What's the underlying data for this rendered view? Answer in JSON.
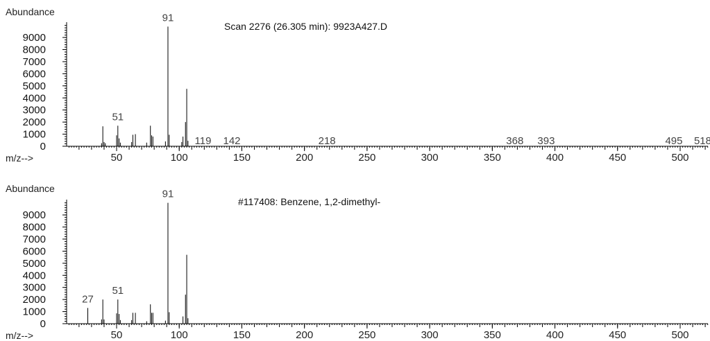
{
  "chart_data": [
    {
      "type": "bar",
      "title": "Scan 2276 (26.305 min): 9923A427.D",
      "ylabel": "Abundance",
      "xlabel": "m/z-->",
      "xlim": [
        10,
        525
      ],
      "ylim": [
        0,
        10000
      ],
      "xticks": [
        50,
        100,
        150,
        200,
        250,
        300,
        350,
        400,
        450,
        500
      ],
      "yticks": [
        0,
        1000,
        2000,
        3000,
        4000,
        5000,
        6000,
        7000,
        8000,
        9000
      ],
      "peak_labels": [
        {
          "x": 51,
          "text": "51"
        },
        {
          "x": 91,
          "text": "91"
        },
        {
          "x": 119,
          "text": "119"
        },
        {
          "x": 142,
          "text": "142"
        },
        {
          "x": 218,
          "text": "218"
        },
        {
          "x": 368,
          "text": "368"
        },
        {
          "x": 393,
          "text": "393"
        },
        {
          "x": 495,
          "text": "495"
        },
        {
          "x": 518,
          "text": "518"
        }
      ],
      "peaks": [
        {
          "x": 38,
          "y": 250
        },
        {
          "x": 39,
          "y": 1650
        },
        {
          "x": 40,
          "y": 350
        },
        {
          "x": 41,
          "y": 250
        },
        {
          "x": 50,
          "y": 900
        },
        {
          "x": 51,
          "y": 1700
        },
        {
          "x": 52,
          "y": 650
        },
        {
          "x": 53,
          "y": 300
        },
        {
          "x": 62,
          "y": 350
        },
        {
          "x": 63,
          "y": 950
        },
        {
          "x": 65,
          "y": 1000
        },
        {
          "x": 74,
          "y": 300
        },
        {
          "x": 77,
          "y": 1700
        },
        {
          "x": 78,
          "y": 900
        },
        {
          "x": 79,
          "y": 800
        },
        {
          "x": 89,
          "y": 400
        },
        {
          "x": 91,
          "y": 9900
        },
        {
          "x": 92,
          "y": 950
        },
        {
          "x": 102,
          "y": 350
        },
        {
          "x": 103,
          "y": 800
        },
        {
          "x": 105,
          "y": 2000
        },
        {
          "x": 106,
          "y": 4750
        },
        {
          "x": 107,
          "y": 450
        }
      ]
    },
    {
      "type": "bar",
      "title": "#117408: Benzene, 1,2-dimethyl-",
      "ylabel": "Abundance",
      "xlabel": "m/z-->",
      "xlim": [
        10,
        525
      ],
      "ylim": [
        0,
        10000
      ],
      "xticks": [
        50,
        100,
        150,
        200,
        250,
        300,
        350,
        400,
        450,
        500
      ],
      "yticks": [
        0,
        1000,
        2000,
        3000,
        4000,
        5000,
        6000,
        7000,
        8000,
        9000
      ],
      "peak_labels": [
        {
          "x": 27,
          "text": "27"
        },
        {
          "x": 51,
          "text": "51"
        },
        {
          "x": 91,
          "text": "91"
        }
      ],
      "peaks": [
        {
          "x": 27,
          "y": 1300
        },
        {
          "x": 38,
          "y": 350
        },
        {
          "x": 39,
          "y": 2000
        },
        {
          "x": 40,
          "y": 350
        },
        {
          "x": 50,
          "y": 850
        },
        {
          "x": 51,
          "y": 2000
        },
        {
          "x": 52,
          "y": 800
        },
        {
          "x": 53,
          "y": 300
        },
        {
          "x": 62,
          "y": 300
        },
        {
          "x": 63,
          "y": 900
        },
        {
          "x": 65,
          "y": 900
        },
        {
          "x": 74,
          "y": 200
        },
        {
          "x": 77,
          "y": 1600
        },
        {
          "x": 78,
          "y": 900
        },
        {
          "x": 79,
          "y": 900
        },
        {
          "x": 89,
          "y": 250
        },
        {
          "x": 91,
          "y": 10000
        },
        {
          "x": 92,
          "y": 950
        },
        {
          "x": 103,
          "y": 600
        },
        {
          "x": 105,
          "y": 2400
        },
        {
          "x": 106,
          "y": 5700
        },
        {
          "x": 107,
          "y": 450
        }
      ]
    }
  ]
}
